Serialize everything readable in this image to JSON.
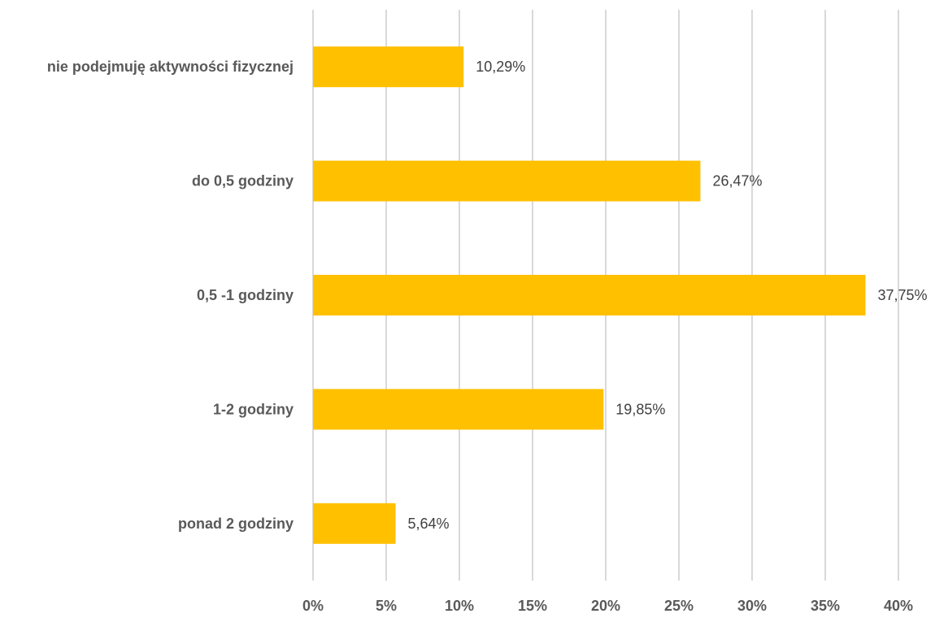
{
  "chart_data": {
    "type": "bar",
    "orientation": "horizontal",
    "categories": [
      "nie podejmuję aktywności fizycznej",
      "do 0,5 godziny",
      "0,5 -1 godziny",
      "1-2 godziny",
      "ponad 2 godziny"
    ],
    "values": [
      10.29,
      26.47,
      37.75,
      19.85,
      5.64
    ],
    "data_labels": [
      "10,29%",
      "26,47%",
      "37,75%",
      "19,85%",
      "5,64%"
    ],
    "x_ticks": [
      0,
      5,
      10,
      15,
      20,
      25,
      30,
      35,
      40
    ],
    "x_tick_labels": [
      "0%",
      "5%",
      "10%",
      "15%",
      "20%",
      "25%",
      "30%",
      "35%",
      "40%"
    ],
    "xlim": [
      0,
      40
    ],
    "grid": "vertical",
    "legend": "none",
    "title": "",
    "xlabel": "",
    "ylabel": "",
    "bar_color": "#FFC000"
  }
}
